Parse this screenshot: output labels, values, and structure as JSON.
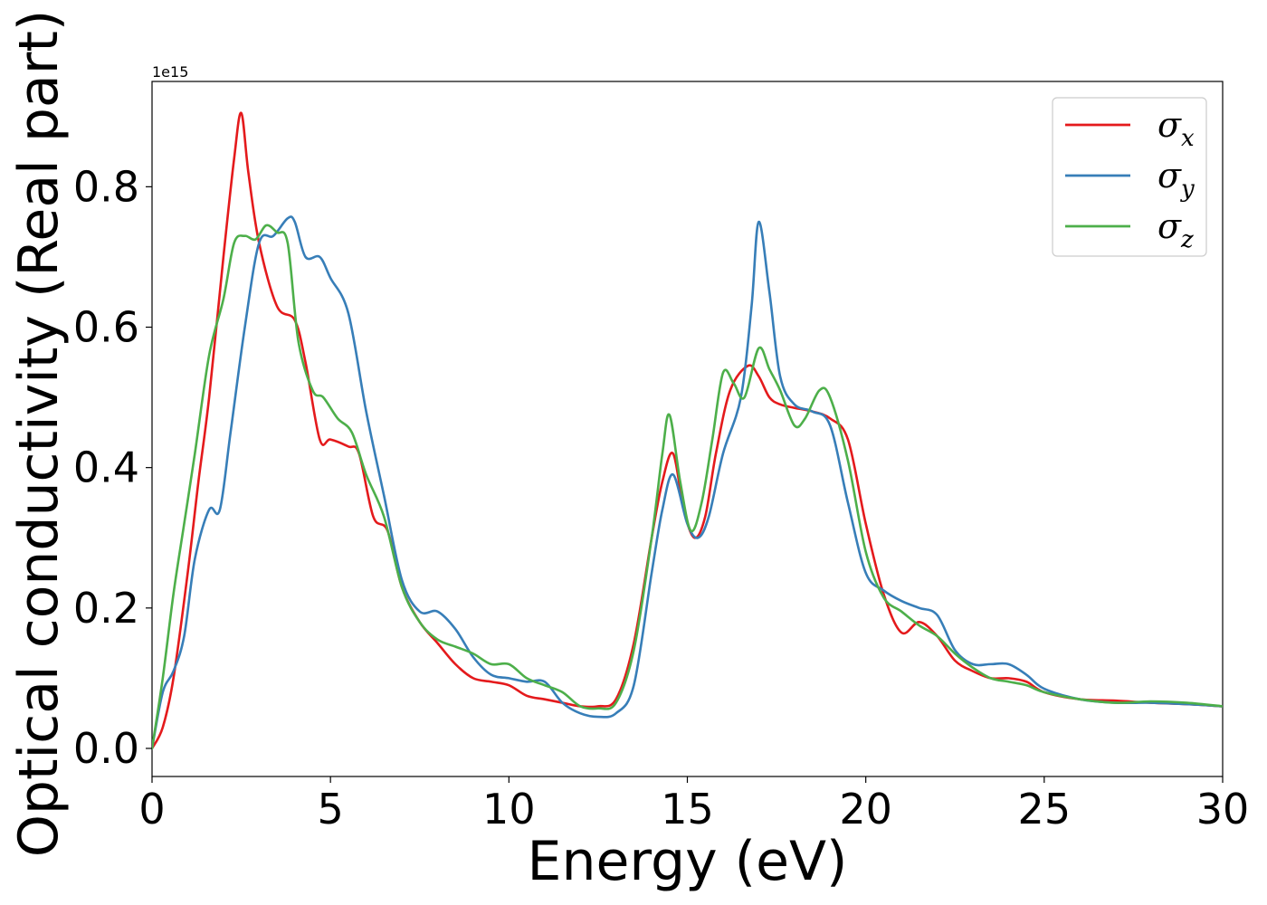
{
  "chart_data": {
    "type": "line",
    "title": "",
    "xlabel": "Energy (eV)",
    "ylabel": "Optical conductivity (Real part)",
    "y_offset_label": "1e15",
    "xlim": [
      0,
      30
    ],
    "ylim": [
      -0.04,
      0.95
    ],
    "xticks": [
      0,
      5,
      10,
      15,
      20,
      25,
      30
    ],
    "xtick_labels": [
      "0",
      "5",
      "10",
      "15",
      "20",
      "25",
      "30"
    ],
    "yticks": [
      0.0,
      0.2,
      0.4,
      0.6,
      0.8
    ],
    "ytick_labels": [
      "0.0",
      "0.2",
      "0.4",
      "0.6",
      "0.8"
    ],
    "grid": false,
    "legend_position": "top-right",
    "series": [
      {
        "name": "σx",
        "symbol": "σ",
        "subscript": "x",
        "color": "#e41a1c",
        "x": [
          0,
          0.3,
          0.6,
          1.0,
          1.3,
          1.6,
          2.0,
          2.3,
          2.5,
          2.7,
          3.0,
          3.5,
          4.0,
          4.3,
          4.7,
          5.0,
          5.5,
          5.8,
          6.2,
          6.6,
          7.0,
          7.5,
          8.0,
          8.5,
          9.0,
          9.5,
          10.0,
          10.5,
          11.0,
          11.5,
          12.0,
          12.5,
          13.0,
          13.5,
          14.0,
          14.3,
          14.6,
          14.9,
          15.2,
          15.5,
          15.8,
          16.2,
          16.7,
          17.0,
          17.3,
          17.6,
          18.0,
          18.5,
          19.0,
          19.5,
          20.0,
          20.5,
          21.0,
          21.5,
          22.0,
          22.5,
          23.0,
          23.5,
          24.0,
          24.5,
          25.0,
          26.0,
          27.0,
          28.0,
          29.0,
          30.0
        ],
        "y": [
          0.0,
          0.03,
          0.1,
          0.25,
          0.38,
          0.5,
          0.7,
          0.84,
          0.905,
          0.82,
          0.72,
          0.63,
          0.61,
          0.55,
          0.44,
          0.44,
          0.43,
          0.42,
          0.33,
          0.31,
          0.23,
          0.18,
          0.15,
          0.12,
          0.1,
          0.095,
          0.09,
          0.075,
          0.07,
          0.065,
          0.06,
          0.06,
          0.07,
          0.15,
          0.3,
          0.38,
          0.42,
          0.34,
          0.3,
          0.33,
          0.42,
          0.51,
          0.545,
          0.53,
          0.5,
          0.49,
          0.485,
          0.48,
          0.47,
          0.44,
          0.32,
          0.22,
          0.165,
          0.18,
          0.16,
          0.125,
          0.11,
          0.1,
          0.1,
          0.095,
          0.08,
          0.07,
          0.068,
          0.065,
          0.063,
          0.06
        ]
      },
      {
        "name": "σy",
        "symbol": "σ",
        "subscript": "y",
        "color": "#377eb8",
        "x": [
          0,
          0.3,
          0.6,
          0.9,
          1.2,
          1.6,
          1.9,
          2.2,
          2.6,
          3.0,
          3.4,
          3.8,
          4.0,
          4.3,
          4.7,
          5.0,
          5.5,
          6.0,
          6.5,
          7.0,
          7.5,
          8.0,
          8.5,
          9.0,
          9.5,
          10.0,
          10.5,
          11.0,
          11.5,
          12.0,
          12.5,
          13.0,
          13.5,
          14.0,
          14.3,
          14.6,
          15.0,
          15.3,
          15.6,
          16.0,
          16.5,
          16.8,
          17.0,
          17.3,
          17.6,
          18.0,
          18.5,
          19.0,
          19.5,
          20.0,
          20.5,
          21.0,
          21.5,
          22.0,
          22.5,
          23.0,
          23.5,
          24.0,
          24.5,
          25.0,
          26.0,
          27.0,
          28.0,
          29.0,
          30.0
        ],
        "y": [
          0.0,
          0.08,
          0.11,
          0.16,
          0.27,
          0.34,
          0.34,
          0.45,
          0.6,
          0.72,
          0.73,
          0.755,
          0.75,
          0.7,
          0.7,
          0.67,
          0.62,
          0.48,
          0.36,
          0.24,
          0.195,
          0.195,
          0.17,
          0.13,
          0.105,
          0.1,
          0.095,
          0.095,
          0.065,
          0.05,
          0.045,
          0.05,
          0.09,
          0.25,
          0.34,
          0.39,
          0.32,
          0.3,
          0.33,
          0.42,
          0.5,
          0.63,
          0.75,
          0.65,
          0.53,
          0.49,
          0.48,
          0.46,
          0.35,
          0.25,
          0.225,
          0.21,
          0.2,
          0.19,
          0.14,
          0.12,
          0.12,
          0.12,
          0.105,
          0.085,
          0.07,
          0.065,
          0.065,
          0.063,
          0.06
        ]
      },
      {
        "name": "σz",
        "symbol": "σ",
        "subscript": "z",
        "color": "#4daf4a",
        "x": [
          0,
          0.3,
          0.6,
          0.9,
          1.2,
          1.6,
          2.0,
          2.3,
          2.6,
          2.9,
          3.2,
          3.5,
          3.8,
          4.1,
          4.5,
          4.8,
          5.2,
          5.6,
          6.0,
          6.5,
          7.0,
          7.5,
          8.0,
          8.5,
          9.0,
          9.5,
          10.0,
          10.5,
          11.0,
          11.5,
          12.0,
          12.5,
          13.0,
          13.5,
          14.0,
          14.3,
          14.5,
          14.8,
          15.1,
          15.4,
          15.7,
          16.0,
          16.3,
          16.6,
          17.0,
          17.3,
          17.6,
          18.0,
          18.3,
          18.7,
          19.0,
          19.5,
          20.0,
          20.5,
          21.0,
          21.5,
          22.0,
          22.5,
          23.0,
          23.5,
          24.0,
          24.5,
          25.0,
          26.0,
          27.0,
          28.0,
          29.0,
          30.0
        ],
        "y": [
          0.0,
          0.1,
          0.22,
          0.32,
          0.42,
          0.56,
          0.64,
          0.72,
          0.73,
          0.725,
          0.745,
          0.735,
          0.72,
          0.58,
          0.51,
          0.5,
          0.47,
          0.45,
          0.39,
          0.33,
          0.23,
          0.18,
          0.155,
          0.145,
          0.135,
          0.12,
          0.12,
          0.1,
          0.09,
          0.08,
          0.06,
          0.057,
          0.065,
          0.14,
          0.3,
          0.42,
          0.475,
          0.38,
          0.31,
          0.35,
          0.44,
          0.535,
          0.52,
          0.5,
          0.57,
          0.54,
          0.51,
          0.46,
          0.47,
          0.51,
          0.5,
          0.41,
          0.28,
          0.215,
          0.195,
          0.175,
          0.16,
          0.135,
          0.115,
          0.1,
          0.095,
          0.09,
          0.08,
          0.07,
          0.065,
          0.067,
          0.065,
          0.06
        ]
      }
    ]
  }
}
